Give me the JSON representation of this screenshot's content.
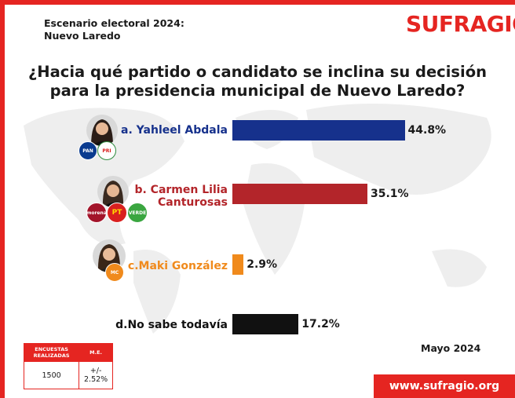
{
  "header": {
    "subtitle_line1": "Escenario electoral 2024:",
    "subtitle_line2": "Nuevo Laredo",
    "logo_text": "SUFRAGIO"
  },
  "question": {
    "line1": "¿Hacia qué partido o candidato se inclina su decisión",
    "line2": "para la presidencia municipal de Nuevo Laredo?"
  },
  "chart_data": {
    "type": "bar",
    "orientation": "horizontal",
    "categories": [
      "a. Yahleel Abdala",
      "b. Carmen Lilia Canturosas",
      "c.Maki González",
      "d.No sabe todavía"
    ],
    "values": [
      44.8,
      35.1,
      2.9,
      17.2
    ],
    "value_labels": [
      "44.8%",
      "35.1%",
      "2.9%",
      "17.2%"
    ],
    "colors": [
      "#16318c",
      "#b3252a",
      "#f08a1c",
      "#111111"
    ]
  },
  "candidates": [
    {
      "label_lines": [
        "a. Yahleel Abdala"
      ],
      "label_color": "#16318c",
      "parties": [
        "PAN",
        "PRI"
      ],
      "party_colors": [
        "#0a3b8f",
        "#ffffff"
      ]
    },
    {
      "label_lines": [
        "b. Carmen Lilia",
        "Canturosas"
      ],
      "label_color": "#b3252a",
      "parties": [
        "morena",
        "PT",
        "VERDE"
      ],
      "party_colors": [
        "#a3142a",
        "#d9201f",
        "#3aa640"
      ]
    },
    {
      "label_lines": [
        "c.Maki González"
      ],
      "label_color": "#f08a1c",
      "parties": [
        "MC"
      ],
      "party_colors": [
        "#f08a1c"
      ]
    },
    {
      "label_lines": [
        "d.No sabe todavía"
      ],
      "label_color": "#111111",
      "parties": [],
      "party_colors": []
    }
  ],
  "date": "Mayo 2024",
  "survey": {
    "header_col1": "ENCUESTAS REALIZADAS",
    "header_col2": "M.E.",
    "value_col1": "1500",
    "value_col2": "+/- 2.52%"
  },
  "footer": {
    "website": "www.sufragio.org"
  },
  "colors": {
    "brand_red": "#e52521"
  }
}
